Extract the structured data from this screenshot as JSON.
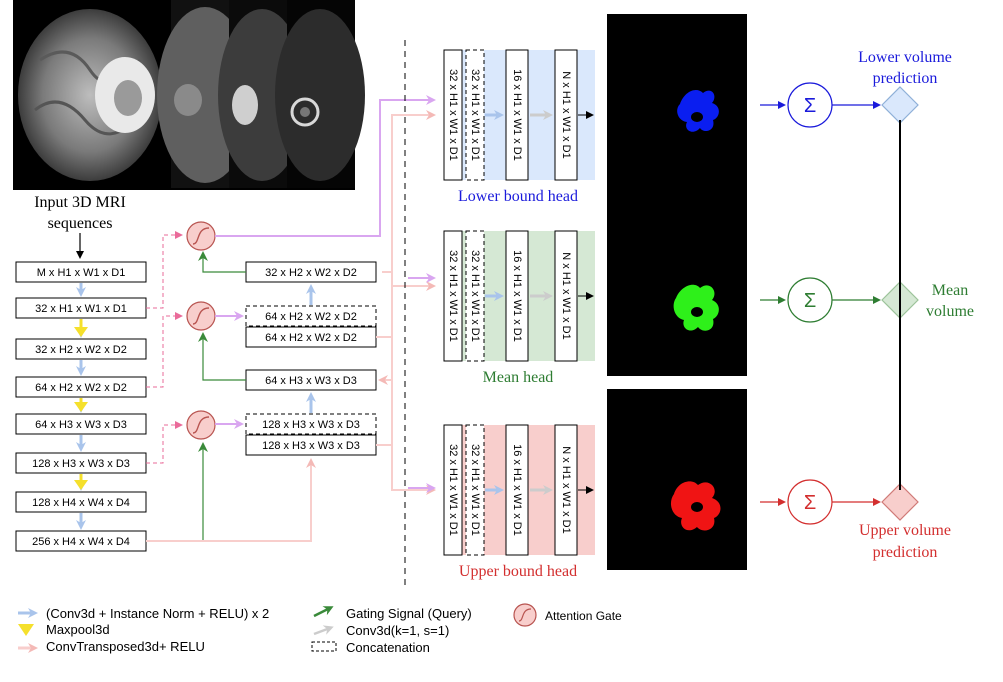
{
  "input": {
    "caption_line1": "Input 3D MRI",
    "caption_line2": "sequences"
  },
  "encoder": {
    "blocks": [
      "M x  H1 x W1 x D1",
      "32 x H1 x W1 x D1",
      "32 x H2 x W2 x D2",
      "64 x H2 x W2 x D2",
      "64 x H3 x W3 x D3",
      "128 x H3 x W3 x D3",
      "128 x H4 x W4 x D4",
      "256 x  H4 x W4 x D4"
    ]
  },
  "decoder": {
    "level2_up": "32 x H2 x W2 x D2",
    "level3_concat": "64 x  H2 x W2 x D2",
    "level3_out": "64 x H2 x W2 x D2",
    "level3_up": "64 x H3 x W3 x D3",
    "level4_concat": "128 x  H3 x W3 x D3",
    "level4_out": "128 x H3 x W3 x D3"
  },
  "heads": [
    {
      "title": "Lower bound head",
      "color": "#1a1adb",
      "fill": "#dae8fc",
      "columns": [
        "32 x H1 x W1 x D1",
        "32 x H1 x W1 x D1",
        "16 x H1 x W1 x D1",
        "N x  H1 x W1 x D1"
      ],
      "mask_color": "#0a1ef0",
      "output_line1": "Lower volume",
      "output_line2": "prediction"
    },
    {
      "title": "Mean head",
      "color": "#2e7d32",
      "fill": "#d5e8d4",
      "columns": [
        "32 x H1 x W1 x D1",
        "32 x H1 x W1 x D1",
        "16 x H1 x W1 x D1",
        "N x  H1 x W1 x D1"
      ],
      "mask_color": "#2ef01a",
      "output_line1": "Mean",
      "output_line2": "volume"
    },
    {
      "title": "Upper bound head",
      "color": "#d32f2f",
      "fill": "#f8cecc",
      "columns": [
        "32 x H1 x W1 x D1",
        "32 x H1 x W1 x D1",
        "16 x H1 x W1 x D1",
        "N x  H1 x W1 x D1"
      ],
      "mask_color": "#f01414",
      "output_line1": "Upper volume",
      "output_line2": "prediction"
    }
  ],
  "sum_symbol": "Σ",
  "legend": {
    "conv": "(Conv3d + Instance Norm + RELU) x 2",
    "maxpool": "Maxpool3d",
    "convtrans": "ConvTransposed3d+ RELU",
    "gating": "Gating Signal (Query)",
    "conv1": "Conv3d(k=1, s=1)",
    "concat": "Concatenation",
    "attention": "Attention Gate"
  },
  "colors": {
    "conv_arrow": "#a9c4eb",
    "maxpool_arrow": "#f5e02c",
    "convtrans_arrow": "#f8cecc",
    "gating_arrow": "#3a8a3a",
    "conv1_arrow": "#cccccc",
    "skip_line": "#ea6b9a",
    "attention_fill": "#f8cecc",
    "attention_stroke": "#b85450",
    "head_feed": "#d9a6f0"
  }
}
